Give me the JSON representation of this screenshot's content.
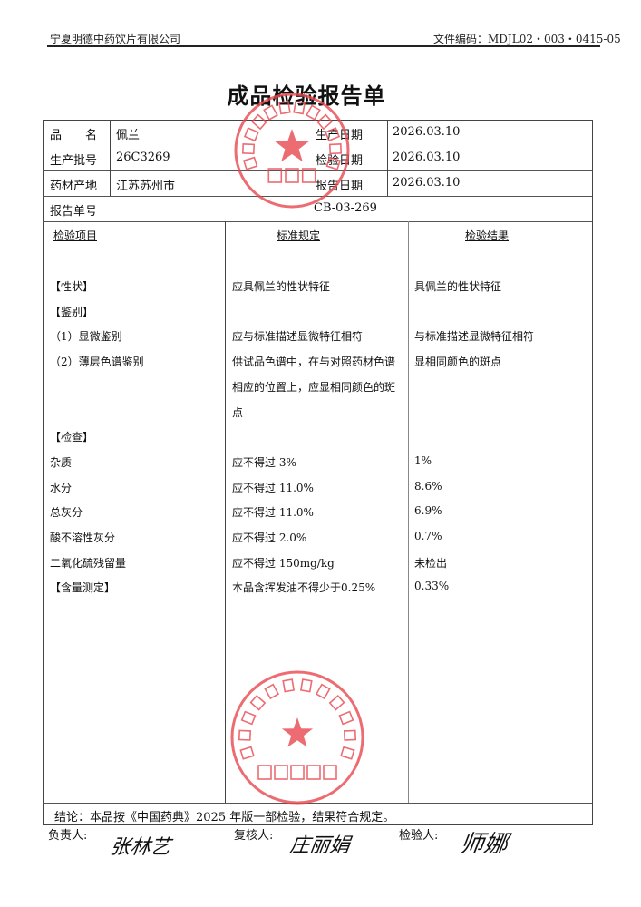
{
  "header": {
    "company": "宁夏明德中药饮片有限公司",
    "doc_code": "文件编码：MDJL02・003・0415-05"
  },
  "title": "成品检验报告单",
  "info": {
    "product_name_label": "品　　名",
    "product_name": "佩兰",
    "batch_label": "生产批号",
    "batch": "26C3269",
    "origin_label": "药材产地",
    "origin": "江苏苏州市",
    "prod_date_label": "生产日期",
    "prod_date": "2026.03.10",
    "test_date_label": "检验日期",
    "test_date": "2026.03.10",
    "report_date_label": "报告日期",
    "report_date": "2026.03.10",
    "report_no_label": "报告单号",
    "report_no": "CB-03-269"
  },
  "columns": {
    "item": "检验项目",
    "standard": "标准规定",
    "result": "检验结果"
  },
  "rows": [
    {
      "item": "【性状】",
      "standard": "应具佩兰的性状特征",
      "result": "具佩兰的性状特征"
    },
    {
      "item": "【鉴别】",
      "standard": "",
      "result": ""
    },
    {
      "item": "（1）显微鉴别",
      "standard": "应与标准描述显微特征相符",
      "result": "与标准描述显微特征相符"
    },
    {
      "item": "（2）薄层色谱鉴别",
      "standard": "供试品色谱中，在与对照药材色谱",
      "result": "显相同颜色的斑点"
    },
    {
      "item": "",
      "standard": "相应的位置上，应显相同颜色的斑",
      "result": ""
    },
    {
      "item": "",
      "standard": "点",
      "result": ""
    },
    {
      "item": "【检查】",
      "standard": "",
      "result": ""
    },
    {
      "item": "杂质",
      "standard": "应不得过 3%",
      "result": "1%"
    },
    {
      "item": "水分",
      "standard": "应不得过 11.0%",
      "result": "8.6%"
    },
    {
      "item": "总灰分",
      "standard": "应不得过 11.0%",
      "result": "6.9%"
    },
    {
      "item": "酸不溶性灰分",
      "standard": "应不得过 2.0%",
      "result": "0.7%"
    },
    {
      "item": "二氧化硫残留量",
      "standard": "应不得过 150mg/kg",
      "result": "未检出"
    },
    {
      "item": "【含量测定】",
      "standard": "本品含挥发油不得少于0.25%",
      "result": "0.33%"
    }
  ],
  "conclusion": "结论：本品按《中国药典》2025 年版一部检验，结果符合规定。",
  "signatures": {
    "responsible_label": "负责人:",
    "responsible": "张林艺",
    "reviewer_label": "复核人:",
    "reviewer": "庄丽娟",
    "inspector_label": "检验人:",
    "inspector": "师娜"
  },
  "stamps": {
    "top": {
      "ring": "宁夏明德中药饮片有限公司",
      "center": "质量部"
    },
    "bottom": {
      "ring": "宁夏明德中药饮片有限公司",
      "center": "质检专用章"
    },
    "color": "#e8484f"
  }
}
